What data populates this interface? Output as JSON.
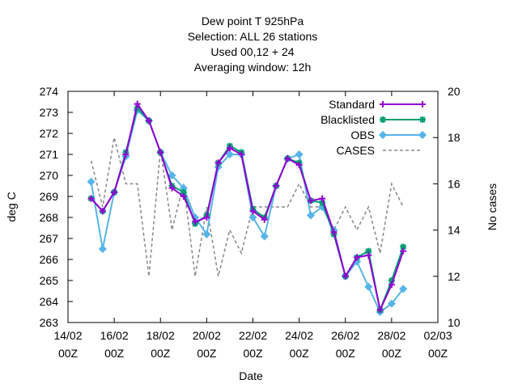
{
  "chart_data": {
    "type": "line",
    "title_lines": [
      "Dew point T 925hPa",
      "Selection: ALL      26 stations",
      "Used  00,12  + 24",
      "Averaging window: 12h"
    ],
    "xlabel": "Date",
    "ylabel": "deg C",
    "y2label": "No cases",
    "ylim": [
      263,
      274
    ],
    "y2lim": [
      10,
      20
    ],
    "xlim": [
      0,
      16
    ],
    "yticks": [
      263,
      264,
      265,
      266,
      267,
      268,
      269,
      270,
      271,
      272,
      273,
      274
    ],
    "y2ticks": [
      10,
      12,
      14,
      16,
      18,
      20
    ],
    "xticks": [
      {
        "x": 0,
        "line1": "14/02",
        "line2": "00Z"
      },
      {
        "x": 2,
        "line1": "16/02",
        "line2": "00Z"
      },
      {
        "x": 4,
        "line1": "18/02",
        "line2": "00Z"
      },
      {
        "x": 6,
        "line1": "20/02",
        "line2": "00Z"
      },
      {
        "x": 8,
        "line1": "22/02",
        "line2": "00Z"
      },
      {
        "x": 10,
        "line1": "24/02",
        "line2": "00Z"
      },
      {
        "x": 12,
        "line1": "26/02",
        "line2": "00Z"
      },
      {
        "x": 14,
        "line1": "28/02",
        "line2": "00Z"
      },
      {
        "x": 16,
        "line1": "02/03",
        "line2": "00Z"
      }
    ],
    "legend_position": "top-right",
    "x": [
      1.0,
      1.5,
      2.0,
      2.5,
      3.0,
      3.5,
      4.0,
      4.5,
      5.0,
      5.5,
      6.0,
      6.5,
      7.0,
      7.5,
      8.0,
      8.5,
      9.0,
      9.5,
      10.0,
      10.5,
      11.0,
      11.5,
      12.0,
      12.5,
      13.0,
      13.5,
      14.0,
      14.5
    ],
    "series": [
      {
        "name": "Standard",
        "color": "#9400d3",
        "axis": "y1",
        "marker": "plus",
        "values": [
          268.9,
          268.3,
          269.2,
          271.0,
          273.4,
          272.6,
          271.1,
          269.4,
          269.0,
          267.8,
          268.0,
          270.6,
          271.3,
          271.0,
          268.3,
          267.9,
          269.5,
          270.8,
          270.5,
          268.8,
          268.9,
          267.3,
          265.2,
          266.1,
          266.2,
          263.6,
          264.8,
          266.4
        ]
      },
      {
        "name": "Blacklisted",
        "color": "#009e73",
        "axis": "y1",
        "marker": "star",
        "values": [
          268.9,
          268.3,
          269.2,
          271.1,
          273.2,
          272.6,
          271.1,
          269.5,
          269.2,
          267.7,
          268.1,
          270.6,
          271.4,
          271.1,
          268.4,
          268.0,
          269.5,
          270.8,
          270.6,
          268.8,
          268.7,
          267.2,
          265.2,
          266.1,
          266.4,
          263.6,
          265.0,
          266.6
        ]
      },
      {
        "name": "OBS",
        "color": "#56b4e9",
        "axis": "y1",
        "marker": "diamond",
        "values": [
          269.7,
          266.5,
          269.2,
          270.9,
          273.1,
          272.6,
          271.1,
          270.0,
          269.4,
          268.0,
          267.2,
          270.4,
          271.0,
          271.0,
          268.0,
          267.1,
          269.5,
          270.8,
          271.0,
          268.1,
          268.5,
          267.4,
          265.2,
          265.9,
          264.7,
          263.5,
          263.9,
          264.6
        ]
      },
      {
        "name": "CASES",
        "color": "#888888",
        "axis": "y2",
        "marker": "none",
        "dash": true,
        "values": [
          17,
          15,
          18,
          16,
          16,
          12,
          17.5,
          14,
          16,
          12,
          15,
          12,
          14,
          13,
          15,
          15,
          15,
          15,
          16,
          15,
          15,
          14,
          15,
          14,
          15,
          13,
          16,
          15
        ]
      }
    ]
  }
}
